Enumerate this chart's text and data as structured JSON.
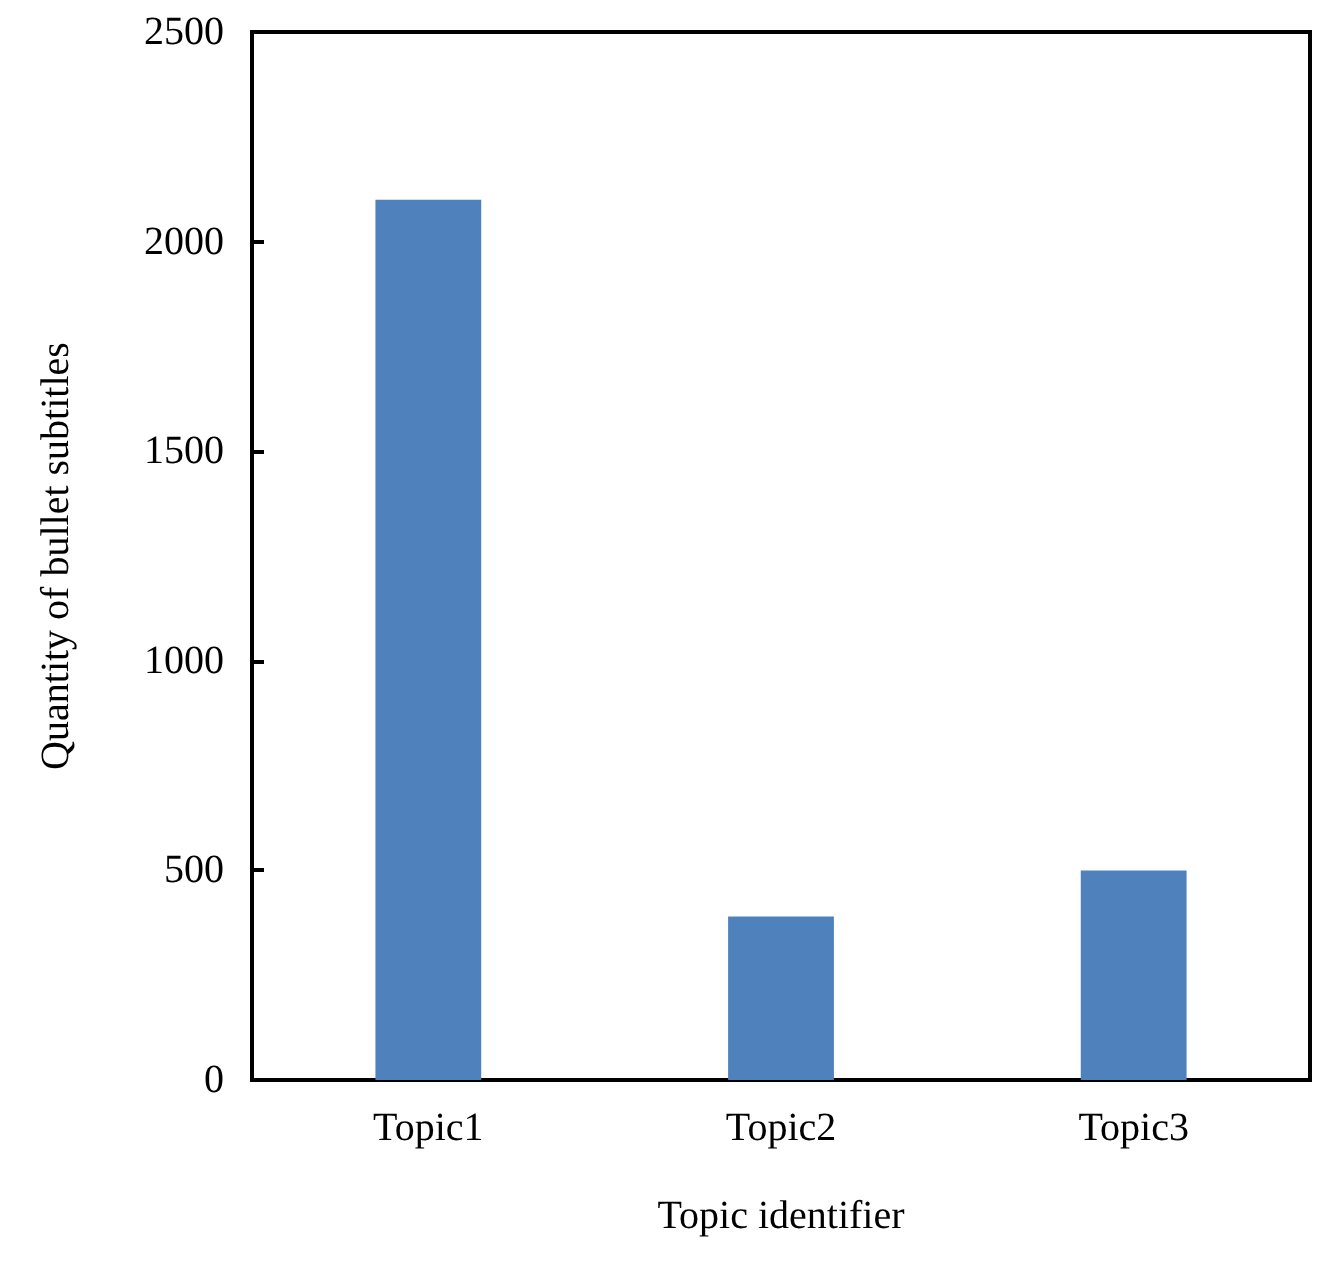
{
  "chart_data": {
    "type": "bar",
    "xlabel": "Topic identifier",
    "ylabel": "Quantity of bullet subtitles",
    "categories": [
      "Topic1",
      "Topic2",
      "Topic3"
    ],
    "values": [
      2100,
      390,
      500
    ],
    "color": "#4f81bd",
    "ylim": [
      0,
      2500
    ],
    "yticks": [
      0,
      500,
      1000,
      1500,
      2000,
      2500
    ],
    "grid": false
  }
}
